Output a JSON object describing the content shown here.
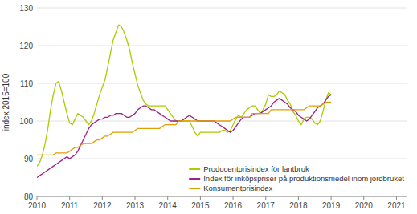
{
  "chart_data": {
    "type": "line",
    "ylabel": "index 2015=100",
    "x": [
      2010.0,
      2010.0833333333,
      2010.1666666667,
      2010.25,
      2010.3333333333,
      2010.4166666667,
      2010.5,
      2010.5833333333,
      2010.6666666667,
      2010.75,
      2010.8333333333,
      2010.9166666667,
      2011.0,
      2011.0833333333,
      2011.1666666667,
      2011.25,
      2011.3333333333,
      2011.4166666667,
      2011.5,
      2011.5833333333,
      2011.6666666667,
      2011.75,
      2011.8333333333,
      2011.9166666667,
      2012.0,
      2012.0833333333,
      2012.1666666667,
      2012.25,
      2012.3333333333,
      2012.4166666667,
      2012.5,
      2012.5833333333,
      2012.6666666667,
      2012.75,
      2012.8333333333,
      2012.9166666667,
      2013.0,
      2013.0833333333,
      2013.1666666667,
      2013.25,
      2013.3333333333,
      2013.4166666667,
      2013.5,
      2013.5833333333,
      2013.6666666667,
      2013.75,
      2013.8333333333,
      2013.9166666667,
      2014.0,
      2014.0833333333,
      2014.1666666667,
      2014.25,
      2014.3333333333,
      2014.4166666667,
      2014.5,
      2014.5833333333,
      2014.6666666667,
      2014.75,
      2014.8333333333,
      2014.9166666667,
      2015.0,
      2015.0833333333,
      2015.1666666667,
      2015.25,
      2015.3333333333,
      2015.4166666667,
      2015.5,
      2015.5833333333,
      2015.6666666667,
      2015.75,
      2015.8333333333,
      2015.9166666667,
      2016.0,
      2016.0833333333,
      2016.1666666667,
      2016.25,
      2016.3333333333,
      2016.4166666667,
      2016.5,
      2016.5833333333,
      2016.6666666667,
      2016.75,
      2016.8333333333,
      2016.9166666667,
      2017.0,
      2017.0833333333,
      2017.1666666667,
      2017.25,
      2017.3333333333,
      2017.4166666667,
      2017.5,
      2017.5833333333,
      2017.6666666667,
      2017.75,
      2017.8333333333,
      2017.9166666667,
      2018.0,
      2018.0833333333,
      2018.1666666667,
      2018.25,
      2018.3333333333,
      2018.4166666667,
      2018.5,
      2018.5833333333,
      2018.6666666667,
      2018.75,
      2018.8333333333,
      2018.9166666667,
      2019.0
    ],
    "xlim": [
      2010.0,
      2021.333
    ],
    "xticks": [
      2010,
      2011,
      2012,
      2013,
      2014,
      2015,
      2016,
      2017,
      2018,
      2019,
      2020,
      2021
    ],
    "ylim": [
      80,
      130
    ],
    "yticks": [
      80,
      90,
      100,
      110,
      120,
      130
    ],
    "grid": true,
    "legend": "lower right",
    "series": [
      {
        "name": "Producentprisindex för lantbruk",
        "color": "#AACC00",
        "values": [
          88.0,
          89.0,
          91.0,
          94.0,
          98.0,
          103.0,
          107.0,
          110.0,
          110.5,
          108.0,
          105.0,
          102.0,
          99.5,
          99.0,
          100.5,
          102.0,
          101.5,
          101.0,
          100.0,
          99.0,
          100.0,
          102.0,
          104.5,
          107.0,
          109.0,
          111.0,
          114.5,
          118.0,
          121.5,
          123.5,
          125.5,
          125.0,
          123.5,
          121.5,
          119.0,
          115.5,
          112.5,
          109.5,
          107.5,
          105.5,
          104.5,
          104.0,
          104.0,
          104.0,
          104.0,
          104.0,
          104.0,
          104.0,
          103.0,
          102.0,
          101.0,
          100.0,
          100.0,
          100.0,
          100.0,
          100.0,
          100.0,
          98.5,
          97.0,
          96.0,
          97.0,
          97.0,
          97.0,
          97.0,
          97.0,
          97.0,
          97.0,
          97.0,
          97.5,
          97.5,
          97.0,
          97.5,
          99.0,
          100.5,
          101.5,
          101.0,
          102.0,
          103.0,
          103.5,
          104.0,
          104.0,
          103.0,
          102.0,
          103.0,
          104.5,
          107.0,
          106.5,
          106.5,
          107.0,
          108.0,
          107.5,
          107.0,
          105.5,
          104.5,
          102.5,
          101.5,
          100.0,
          99.0,
          100.5,
          101.0,
          101.0,
          100.5,
          99.5,
          99.0,
          100.0,
          102.5,
          105.5,
          107.5,
          107.0
        ]
      },
      {
        "name": "Index för inköpspriser på produktionsmedel inom jordbruket",
        "color": "#A0208A",
        "values": [
          85.0,
          85.5,
          86.0,
          86.5,
          87.0,
          87.5,
          88.0,
          88.5,
          89.0,
          89.5,
          90.0,
          90.5,
          90.0,
          90.5,
          91.0,
          92.0,
          93.5,
          95.0,
          96.5,
          98.0,
          99.0,
          99.5,
          100.0,
          100.5,
          100.5,
          101.0,
          101.0,
          101.5,
          101.5,
          102.0,
          102.0,
          102.0,
          101.5,
          101.0,
          101.0,
          101.5,
          102.0,
          103.0,
          103.5,
          104.0,
          104.0,
          103.5,
          103.0,
          103.0,
          102.5,
          102.0,
          101.5,
          101.0,
          100.5,
          100.0,
          100.0,
          100.0,
          100.0,
          100.0,
          100.5,
          101.0,
          101.5,
          101.0,
          100.5,
          100.0,
          100.0,
          100.0,
          100.0,
          100.0,
          100.0,
          100.0,
          99.5,
          99.0,
          98.5,
          98.0,
          97.5,
          97.0,
          97.5,
          98.5,
          99.5,
          100.5,
          101.0,
          101.0,
          101.0,
          101.5,
          102.0,
          102.0,
          102.0,
          102.5,
          103.0,
          103.5,
          104.0,
          105.0,
          105.5,
          106.0,
          105.5,
          105.0,
          104.5,
          103.5,
          103.0,
          102.5,
          101.5,
          101.0,
          100.5,
          100.0,
          100.5,
          101.5,
          102.5,
          103.5,
          104.0,
          104.5,
          105.5,
          106.5,
          107.0
        ]
      },
      {
        "name": "Konsumentprisindex",
        "color": "#E0A000",
        "values": [
          91.0,
          91.0,
          91.0,
          91.0,
          91.0,
          91.0,
          91.0,
          91.5,
          91.5,
          91.5,
          91.5,
          91.5,
          92.0,
          92.5,
          93.0,
          93.0,
          93.5,
          94.0,
          94.0,
          94.0,
          94.0,
          94.5,
          95.0,
          95.0,
          95.5,
          96.0,
          96.0,
          96.5,
          97.0,
          97.0,
          97.0,
          97.0,
          97.0,
          97.0,
          97.0,
          97.0,
          97.5,
          98.0,
          98.0,
          98.0,
          98.0,
          98.0,
          98.0,
          98.0,
          98.0,
          98.0,
          98.5,
          99.0,
          99.0,
          99.0,
          99.0,
          99.0,
          100.0,
          100.0,
          100.0,
          100.0,
          100.0,
          100.0,
          100.0,
          100.0,
          100.0,
          100.0,
          100.0,
          100.0,
          100.0,
          100.0,
          100.0,
          100.0,
          100.0,
          100.0,
          100.0,
          100.0,
          100.5,
          101.0,
          101.0,
          101.0,
          101.0,
          101.0,
          101.0,
          102.0,
          102.0,
          102.0,
          102.0,
          102.0,
          102.0,
          102.0,
          103.0,
          103.0,
          103.0,
          103.0,
          103.0,
          103.0,
          103.0,
          103.0,
          103.0,
          103.0,
          103.0,
          103.0,
          103.0,
          103.5,
          104.0,
          104.0,
          104.0,
          104.0,
          104.0,
          104.5,
          105.0,
          105.0,
          105.0
        ]
      }
    ]
  }
}
